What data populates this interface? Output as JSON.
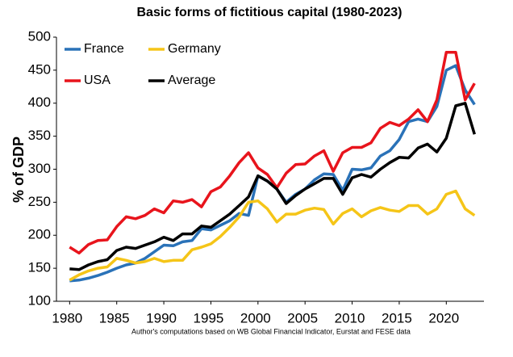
{
  "chart_data": {
    "type": "line",
    "title": "Basic forms of fictitious capital (1980-2023)",
    "ylabel": "% of GDP",
    "note": "Author's computations based on WB Global Financial Indicator, Eurstat and FESE  data",
    "x": [
      1980,
      1981,
      1982,
      1983,
      1984,
      1985,
      1986,
      1987,
      1988,
      1989,
      1990,
      1991,
      1992,
      1993,
      1994,
      1995,
      1996,
      1997,
      1998,
      1999,
      2000,
      2001,
      2002,
      2003,
      2004,
      2005,
      2006,
      2007,
      2008,
      2009,
      2010,
      2011,
      2012,
      2013,
      2014,
      2015,
      2016,
      2017,
      2018,
      2019,
      2020,
      2021,
      2022,
      2023
    ],
    "series": [
      {
        "name": "France",
        "color": "#2a72b8",
        "values": [
          131,
          132,
          135,
          139,
          144,
          150,
          155,
          158,
          165,
          175,
          185,
          184,
          190,
          192,
          210,
          208,
          215,
          222,
          233,
          230,
          290,
          282,
          270,
          250,
          262,
          270,
          284,
          293,
          292,
          268,
          300,
          299,
          302,
          320,
          328,
          345,
          372,
          376,
          372,
          395,
          450,
          457,
          420,
          398
        ]
      },
      {
        "name": "Germany",
        "color": "#f5c518",
        "values": [
          132,
          140,
          146,
          150,
          152,
          165,
          162,
          158,
          160,
          165,
          160,
          162,
          162,
          178,
          182,
          187,
          198,
          212,
          228,
          250,
          252,
          240,
          220,
          232,
          232,
          238,
          241,
          239,
          217,
          233,
          240,
          228,
          237,
          242,
          238,
          236,
          245,
          245,
          232,
          240,
          262,
          267,
          240,
          230
        ]
      },
      {
        "name": "USA",
        "color": "#e8141c",
        "values": [
          182,
          173,
          186,
          192,
          193,
          213,
          228,
          225,
          230,
          240,
          234,
          252,
          250,
          254,
          243,
          266,
          273,
          290,
          310,
          325,
          302,
          292,
          272,
          294,
          307,
          308,
          320,
          328,
          297,
          325,
          333,
          333,
          340,
          362,
          371,
          366,
          376,
          390,
          372,
          405,
          477,
          477,
          405,
          430
        ]
      },
      {
        "name": "Average",
        "color": "#000000",
        "values": [
          149,
          148,
          155,
          160,
          163,
          177,
          182,
          180,
          185,
          190,
          197,
          192,
          202,
          202,
          214,
          212,
          222,
          232,
          245,
          258,
          290,
          282,
          270,
          248,
          260,
          270,
          278,
          286,
          286,
          262,
          287,
          292,
          288,
          300,
          310,
          318,
          317,
          332,
          338,
          326,
          347,
          396,
          400,
          353
        ]
      }
    ],
    "xlim": [
      1978.6,
      2024
    ],
    "xticks": [
      1980,
      1985,
      1990,
      1995,
      2000,
      2005,
      2010,
      2015,
      2020
    ],
    "ylim": [
      100,
      500
    ],
    "yticks": [
      100,
      150,
      200,
      250,
      300,
      350,
      400,
      450,
      500
    ],
    "grid": false,
    "legend": "upper left"
  }
}
